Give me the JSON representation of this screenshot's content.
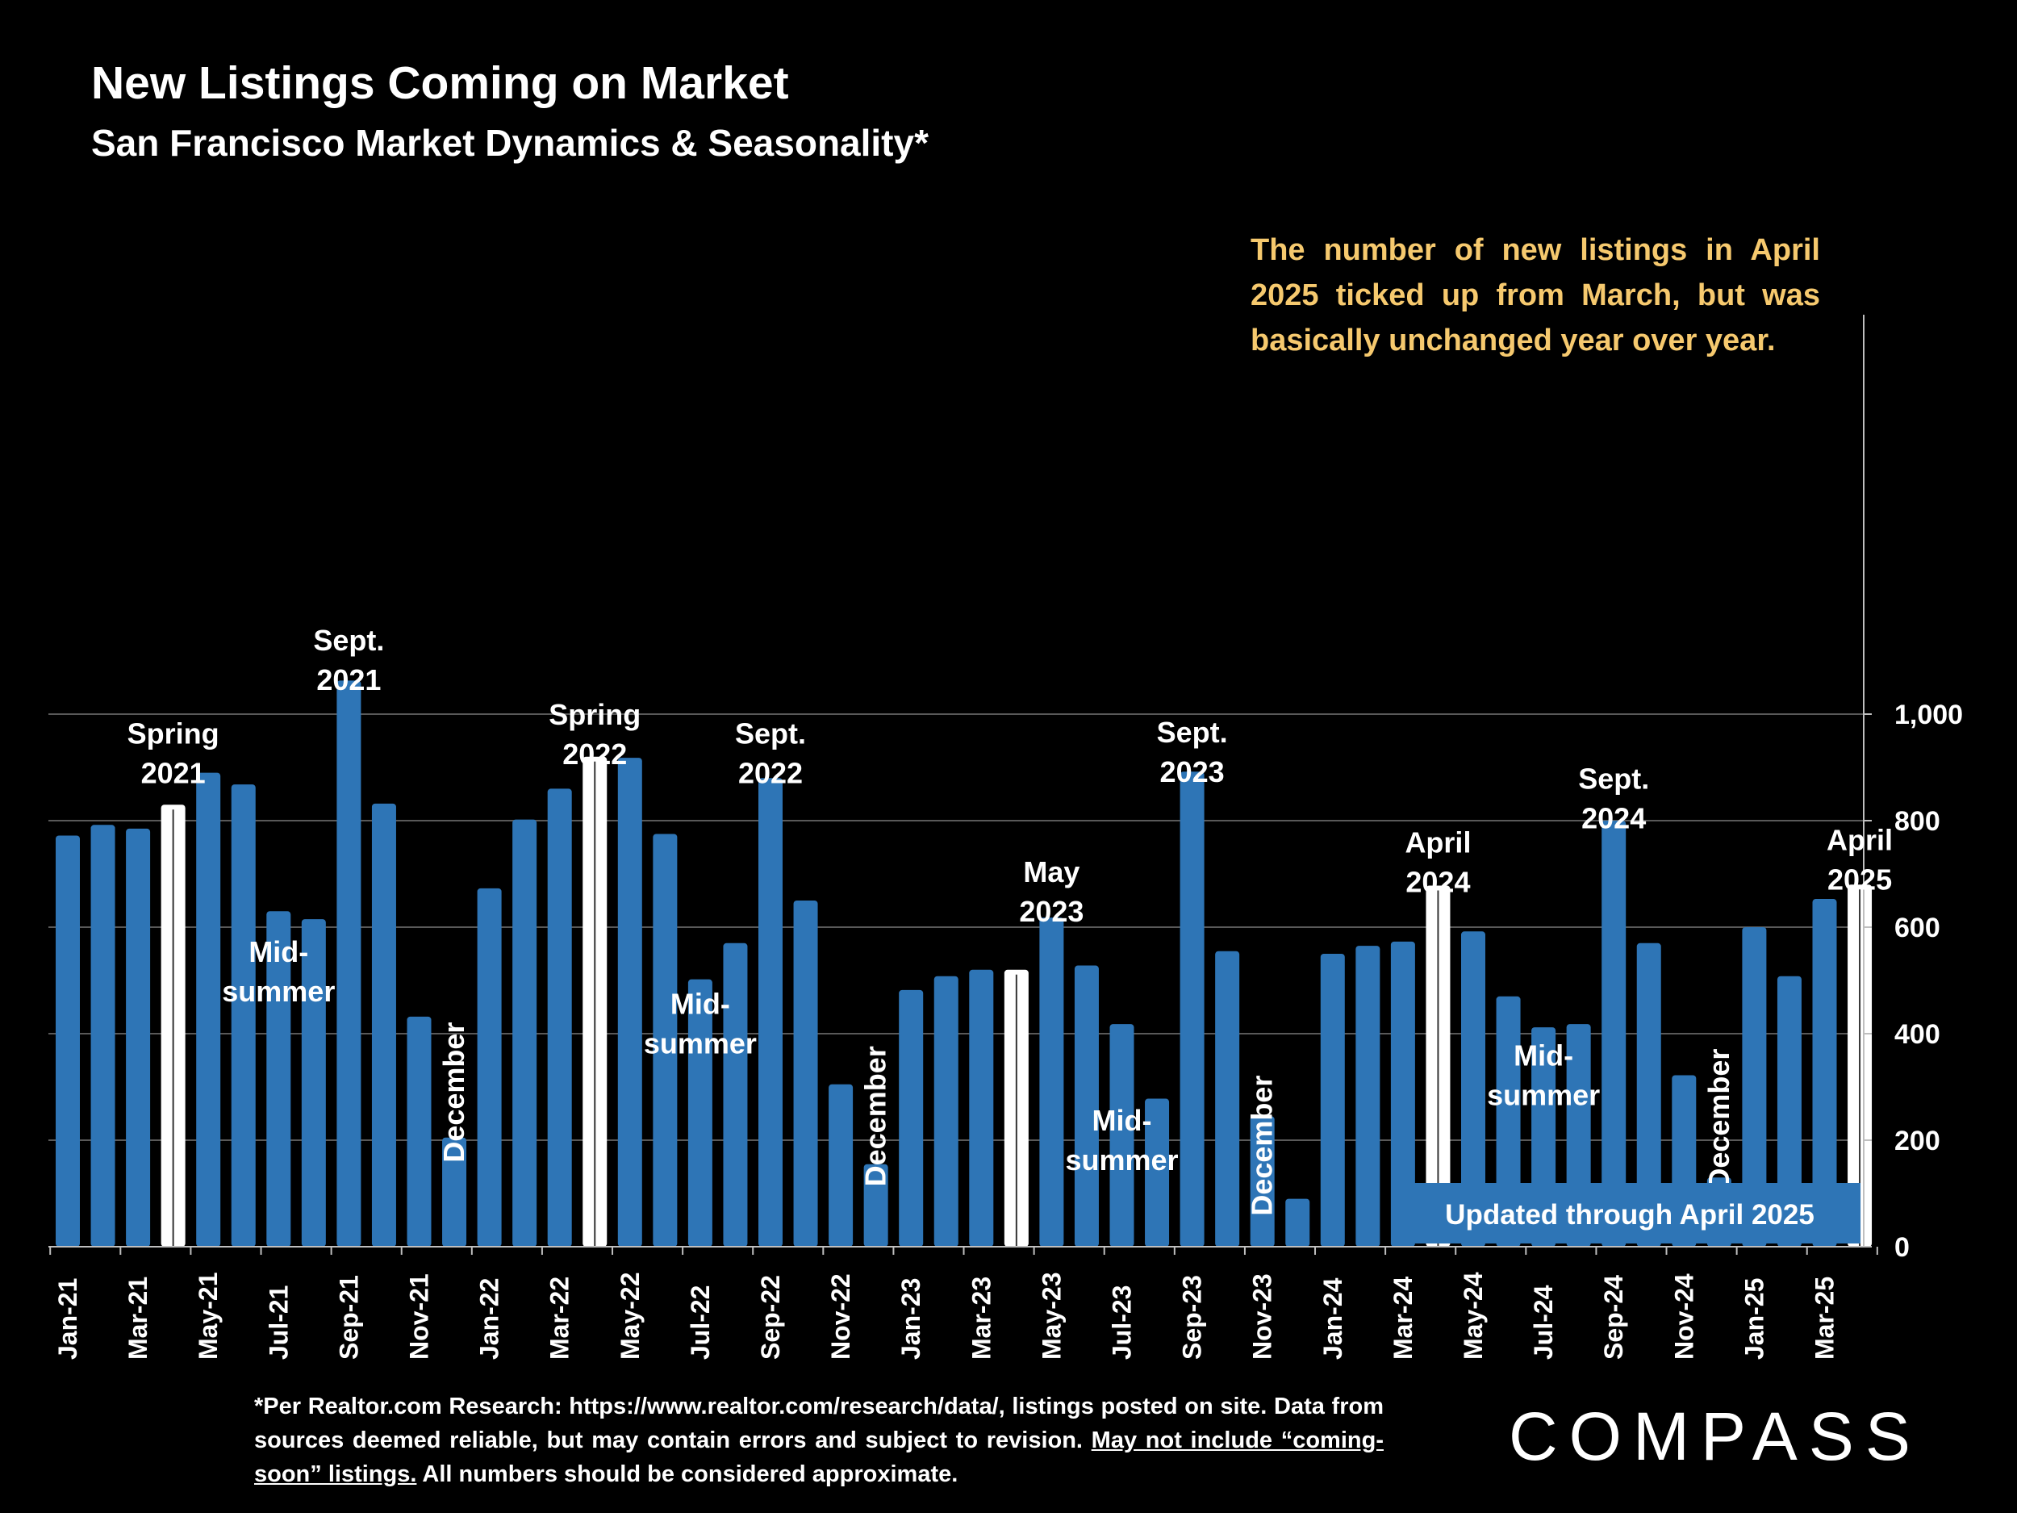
{
  "header": {
    "title": "New Listings Coming on Market",
    "subtitle": "San Francisco Market Dynamics & Seasonality*"
  },
  "callout": "The number of new listings in April 2025 ticked up from March, but was basically unchanged year over year.",
  "updated_badge": "Updated through April 2025",
  "footnote": {
    "part1": "*Per Realtor.com Research:  https://www.realtor.com/research/data/, listings posted on site. Data from sources deemed reliable, but may contain errors and subject to revision. ",
    "underlined": "May not include “coming-soon” listings.",
    "part2": " All numbers should be considered approximate."
  },
  "logo": "COMPASS",
  "colors": {
    "bar": "#2e75b6",
    "highlight": "#ffffff",
    "background": "#000000",
    "callout": "#f6c96e",
    "grid": "#595959"
  },
  "chart_data": {
    "type": "bar",
    "categories": [
      "Jan-21",
      "Feb-21",
      "Mar-21",
      "Apr-21",
      "May-21",
      "Jun-21",
      "Jul-21",
      "Aug-21",
      "Sep-21",
      "Oct-21",
      "Nov-21",
      "Dec-21",
      "Jan-22",
      "Feb-22",
      "Mar-22",
      "Apr-22",
      "May-22",
      "Jun-22",
      "Jul-22",
      "Aug-22",
      "Sep-22",
      "Oct-22",
      "Nov-22",
      "Dec-22",
      "Jan-23",
      "Feb-23",
      "Mar-23",
      "Apr-23",
      "May-23",
      "Jun-23",
      "Jul-23",
      "Aug-23",
      "Sep-23",
      "Oct-23",
      "Nov-23",
      "Dec-23",
      "Jan-24",
      "Feb-24",
      "Mar-24",
      "Apr-24",
      "May-24",
      "Jun-24",
      "Jul-24",
      "Aug-24",
      "Sep-24",
      "Oct-24",
      "Nov-24",
      "Dec-24",
      "Jan-25",
      "Feb-25",
      "Mar-25",
      "Apr-25"
    ],
    "values": [
      772,
      792,
      785,
      830,
      890,
      868,
      630,
      615,
      1063,
      832,
      432,
      205,
      673,
      802,
      860,
      920,
      918,
      775,
      502,
      570,
      880,
      650,
      305,
      155,
      482,
      508,
      520,
      520,
      618,
      528,
      418,
      278,
      892,
      555,
      245,
      90,
      550,
      565,
      573,
      678,
      592,
      470,
      412,
      418,
      800,
      570,
      322,
      130,
      600,
      508,
      653,
      680
    ],
    "highlighted": [
      "Apr-21",
      "Apr-22",
      "Apr-23",
      "Apr-24",
      "Apr-25"
    ],
    "x_tick_labels": [
      "Jan-21",
      "Mar-21",
      "May-21",
      "Jul-21",
      "Sep-21",
      "Nov-21",
      "Jan-22",
      "Mar-22",
      "May-22",
      "Jul-22",
      "Sep-22",
      "Nov-22",
      "Jan-23",
      "Mar-23",
      "May-23",
      "Jul-23",
      "Sep-23",
      "Nov-23",
      "Jan-24",
      "Mar-24",
      "May-24",
      "Jul-24",
      "Sep-24",
      "Nov-24",
      "Jan-25",
      "Mar-25"
    ],
    "y_ticks": [
      "0",
      "200",
      "400",
      "600",
      "800",
      "1,000"
    ],
    "ylim": [
      0,
      1100
    ],
    "y_axis_side": "right",
    "grid": true,
    "annotations": [
      {
        "lines": [
          "Spring",
          "2021"
        ],
        "x": "Apr-21",
        "y": 945,
        "rotate": false
      },
      {
        "lines": [
          "Sept.",
          "2021"
        ],
        "x": "Sep-21",
        "y": 1120,
        "rotate": false
      },
      {
        "lines": [
          "Mid-",
          "summer"
        ],
        "x": "Jul-21",
        "y": 535,
        "rotate": false
      },
      {
        "lines": [
          "December"
        ],
        "x": "Dec-21",
        "y": 290,
        "rotate": true
      },
      {
        "lines": [
          "Spring",
          "2022"
        ],
        "x": "Apr-22",
        "y": 980,
        "rotate": false
      },
      {
        "lines": [
          "Sept.",
          "2022"
        ],
        "x": "Sep-22",
        "y": 945,
        "rotate": false
      },
      {
        "lines": [
          "Mid-",
          "summer"
        ],
        "x": "Jul-22",
        "y": 437,
        "rotate": false
      },
      {
        "lines": [
          "December"
        ],
        "x": "Dec-22",
        "y": 245,
        "rotate": true
      },
      {
        "lines": [
          "May",
          "2023"
        ],
        "x": "May-23",
        "y": 685,
        "rotate": false
      },
      {
        "lines": [
          "Sept.",
          "2023"
        ],
        "x": "Sep-23",
        "y": 947,
        "rotate": false
      },
      {
        "lines": [
          "Mid-",
          "summer"
        ],
        "x": "Jul-23",
        "y": 218,
        "rotate": false
      },
      {
        "lines": [
          "December"
        ],
        "x": "Nov-23",
        "y": 190,
        "rotate": true
      },
      {
        "lines": [
          "April",
          "2024"
        ],
        "x": "Apr-24",
        "y": 740,
        "rotate": false
      },
      {
        "lines": [
          "Sept.",
          "2024"
        ],
        "x": "Sep-24",
        "y": 860,
        "rotate": false
      },
      {
        "lines": [
          "Mid-",
          "summer"
        ],
        "x": "Jul-24",
        "y": 340,
        "rotate": false
      },
      {
        "lines": [
          "December"
        ],
        "x": "Dec-24",
        "y": 240,
        "rotate": true
      },
      {
        "lines": [
          "April",
          "2025"
        ],
        "x": "Apr-25",
        "y": 745,
        "rotate": false
      }
    ]
  }
}
